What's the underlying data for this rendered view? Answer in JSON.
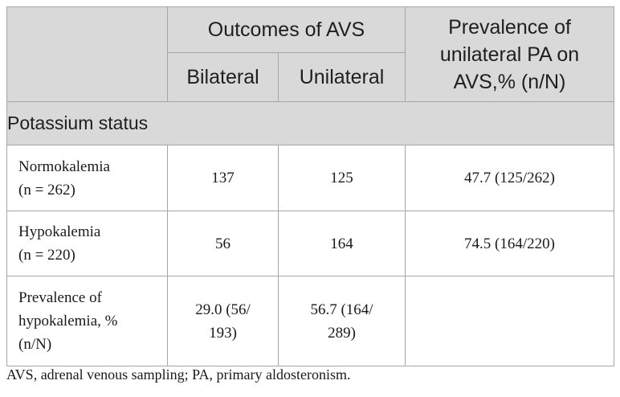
{
  "table": {
    "header": {
      "outcomes_group": "Outcomes of AVS",
      "bilateral": "Bilateral",
      "unilateral": "Unilateral",
      "prevalence_line1": "Prevalence of",
      "prevalence_line2": "unilateral PA on",
      "prevalence_line3": "AVS,% (n/N)"
    },
    "section": "Potassium status",
    "rows": [
      {
        "label_line1": "Normokalemia",
        "label_line2": "(n = 262)",
        "bilateral": "137",
        "unilateral": "125",
        "prevalence": "47.7 (125/262)"
      },
      {
        "label_line1": "Hypokalemia",
        "label_line2": "(n = 220)",
        "bilateral": "56",
        "unilateral": "164",
        "prevalence": "74.5 (164/220)"
      },
      {
        "label_line1": "Prevalence of",
        "label_line2": "hypokalemia, %",
        "label_line3": "(n/N)",
        "bilateral_line1": "29.0 (56/",
        "bilateral_line2": "193)",
        "unilateral_line1": "56.7 (164/",
        "unilateral_line2": "289)",
        "prevalence": ""
      }
    ]
  },
  "footnote": "AVS, adrenal venous sampling; PA, primary aldosteronism."
}
